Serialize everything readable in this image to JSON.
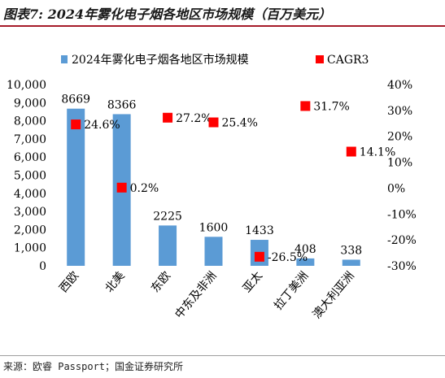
{
  "header": {
    "title": "图表7: 2024年雾化电子烟各地区市场规模（百万美元）"
  },
  "footer": {
    "source": "来源：欧睿 Passport；国金证券研究所"
  },
  "chart_data": {
    "type": "bar",
    "categories": [
      "西欧",
      "北美",
      "东欧",
      "中东及非洲",
      "亚太",
      "拉丁美洲",
      "澳大利亚洲"
    ],
    "series": [
      {
        "name": "2024年雾化电子烟各地区市场规模",
        "type": "bar",
        "axis": "left",
        "values": [
          8669,
          8366,
          2225,
          1600,
          1433,
          408,
          338
        ],
        "labels": [
          "8669",
          "8366",
          "2225",
          "1600",
          "1433",
          "408",
          "338"
        ],
        "color": "#5b9bd5"
      },
      {
        "name": "CAGR3",
        "type": "scatter",
        "axis": "right",
        "values": [
          24.6,
          0.2,
          27.2,
          25.4,
          -26.5,
          31.7,
          14.1
        ],
        "labels": [
          "24.6%",
          "0.2%",
          "27.2%",
          "25.4%",
          "-26.5%",
          "31.7%",
          "14.1%"
        ],
        "color": "#ff0000"
      }
    ],
    "ylim": [
      0,
      10000
    ],
    "yticks": [
      "0",
      "1,000",
      "2,000",
      "3,000",
      "4,000",
      "5,000",
      "6,000",
      "7,000",
      "8,000",
      "9,000",
      "10,000"
    ],
    "y2lim": [
      -30,
      40
    ],
    "y2ticks": [
      "-30%",
      "-20%",
      "-10%",
      "0%",
      "10%",
      "20%",
      "30%",
      "40%"
    ],
    "legend_position": "top",
    "grid": false
  }
}
